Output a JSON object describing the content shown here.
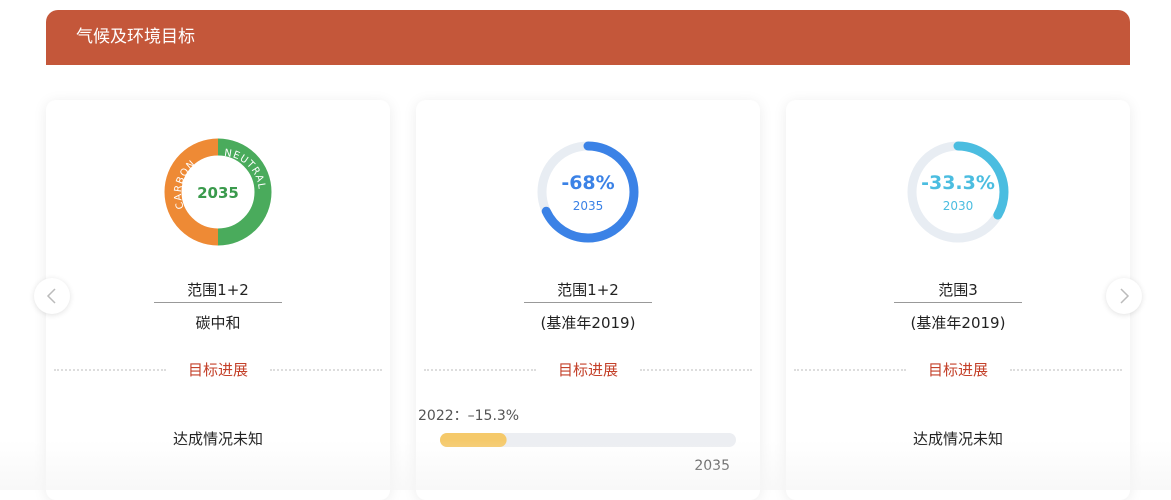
{
  "header": {
    "title": "气候及环境目标"
  },
  "cards": [
    {
      "badge_top_left": "CARBON",
      "badge_top_right": "NEUTRAL",
      "badge_year": "2035",
      "name": "范围1+2",
      "subtitle": "碳中和",
      "progress_title": "目标进展",
      "status": "达成情况未知"
    },
    {
      "target": {
        "value": -68,
        "label": "-68%"
      },
      "target_year": "2035",
      "name": "范围1+2",
      "subtitle": "(基准年2019)",
      "progress_title": "目标进展",
      "progress": {
        "value": -15.3,
        "label": "2022：–15.3%"
      },
      "progress_end": "2035"
    },
    {
      "target": {
        "value": -33.3,
        "label": "-33.3%"
      },
      "target_year": "2030",
      "name": "范围3",
      "subtitle": "(基准年2019)",
      "progress_title": "目标进展",
      "status": "达成情况未知"
    }
  ]
}
